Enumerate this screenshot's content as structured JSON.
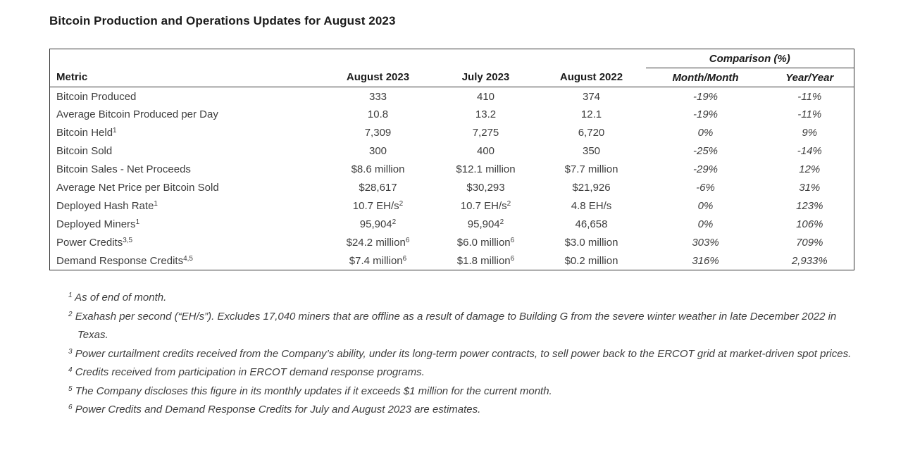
{
  "page": {
    "title": "Bitcoin Production and Operations Updates for August 2023"
  },
  "colors": {
    "background": "#ffffff",
    "heading_text": "#1b1b1b",
    "body_text": "#3d3d3d",
    "border": "#333333"
  },
  "table": {
    "comparison_group_header": "Comparison (%)",
    "columns": [
      "Metric",
      "August 2023",
      "July 2023",
      "August 2022",
      "Month/Month",
      "Year/Year"
    ],
    "rows": [
      {
        "cells": [
          {
            "t": "Bitcoin Produced"
          },
          {
            "t": "333"
          },
          {
            "t": "410"
          },
          {
            "t": "374"
          },
          {
            "t": "-19%"
          },
          {
            "t": "-11%"
          }
        ]
      },
      {
        "cells": [
          {
            "t": "Average Bitcoin Produced per Day"
          },
          {
            "t": "10.8"
          },
          {
            "t": "13.2"
          },
          {
            "t": "12.1"
          },
          {
            "t": "-19%"
          },
          {
            "t": "-11%"
          }
        ]
      },
      {
        "cells": [
          {
            "t": "Bitcoin Held",
            "s": "1"
          },
          {
            "t": "7,309"
          },
          {
            "t": "7,275"
          },
          {
            "t": "6,720"
          },
          {
            "t": "0%"
          },
          {
            "t": "9%"
          }
        ]
      },
      {
        "cells": [
          {
            "t": "Bitcoin Sold"
          },
          {
            "t": "300"
          },
          {
            "t": "400"
          },
          {
            "t": "350"
          },
          {
            "t": "-25%"
          },
          {
            "t": "-14%"
          }
        ]
      },
      {
        "cells": [
          {
            "t": "Bitcoin Sales - Net Proceeds"
          },
          {
            "t": "$8.6 million"
          },
          {
            "t": "$12.1 million"
          },
          {
            "t": "$7.7 million"
          },
          {
            "t": "-29%"
          },
          {
            "t": "12%"
          }
        ]
      },
      {
        "cells": [
          {
            "t": "Average Net Price per Bitcoin Sold"
          },
          {
            "t": "$28,617"
          },
          {
            "t": "$30,293"
          },
          {
            "t": "$21,926"
          },
          {
            "t": "-6%"
          },
          {
            "t": "31%"
          }
        ]
      },
      {
        "cells": [
          {
            "t": "Deployed Hash Rate",
            "s": "1"
          },
          {
            "t": "10.7 EH/s",
            "s": "2"
          },
          {
            "t": "10.7 EH/s",
            "s": "2"
          },
          {
            "t": "4.8 EH/s"
          },
          {
            "t": "0%"
          },
          {
            "t": "123%"
          }
        ]
      },
      {
        "cells": [
          {
            "t": "Deployed Miners",
            "s": "1"
          },
          {
            "t": "95,904",
            "s": "2"
          },
          {
            "t": "95,904",
            "s": "2"
          },
          {
            "t": "46,658"
          },
          {
            "t": "0%"
          },
          {
            "t": "106%"
          }
        ]
      },
      {
        "cells": [
          {
            "t": "Power Credits",
            "s": "3,5"
          },
          {
            "t": "$24.2 million",
            "s": "6"
          },
          {
            "t": "$6.0 million",
            "s": "6"
          },
          {
            "t": "$3.0 million"
          },
          {
            "t": "303%"
          },
          {
            "t": "709%"
          }
        ]
      },
      {
        "cells": [
          {
            "t": "Demand Response Credits",
            "s": "4,5"
          },
          {
            "t": "$7.4 million",
            "s": "6"
          },
          {
            "t": "$1.8 million",
            "s": "6"
          },
          {
            "t": "$0.2 million"
          },
          {
            "t": "316%"
          },
          {
            "t": "2,933%"
          }
        ]
      }
    ]
  },
  "footnotes": [
    {
      "sup": "1",
      "text": "As of end of month."
    },
    {
      "sup": "2",
      "text": "Exahash per second (“EH/s”). Excludes 17,040 miners that are offline as a result of damage to Building G from the severe winter weather in late December 2022 in Texas."
    },
    {
      "sup": "3",
      "text": "Power curtailment credits received from the Company’s ability, under its long-term power contracts, to sell power back to the ERCOT grid at market-driven spot prices."
    },
    {
      "sup": "4",
      "text": "Credits received from participation in ERCOT demand response programs."
    },
    {
      "sup": "5",
      "text": "The Company discloses this figure in its monthly updates if it exceeds $1 million for the current month."
    },
    {
      "sup": "6",
      "text": "Power Credits and Demand Response Credits for July and August 2023 are estimates."
    }
  ]
}
